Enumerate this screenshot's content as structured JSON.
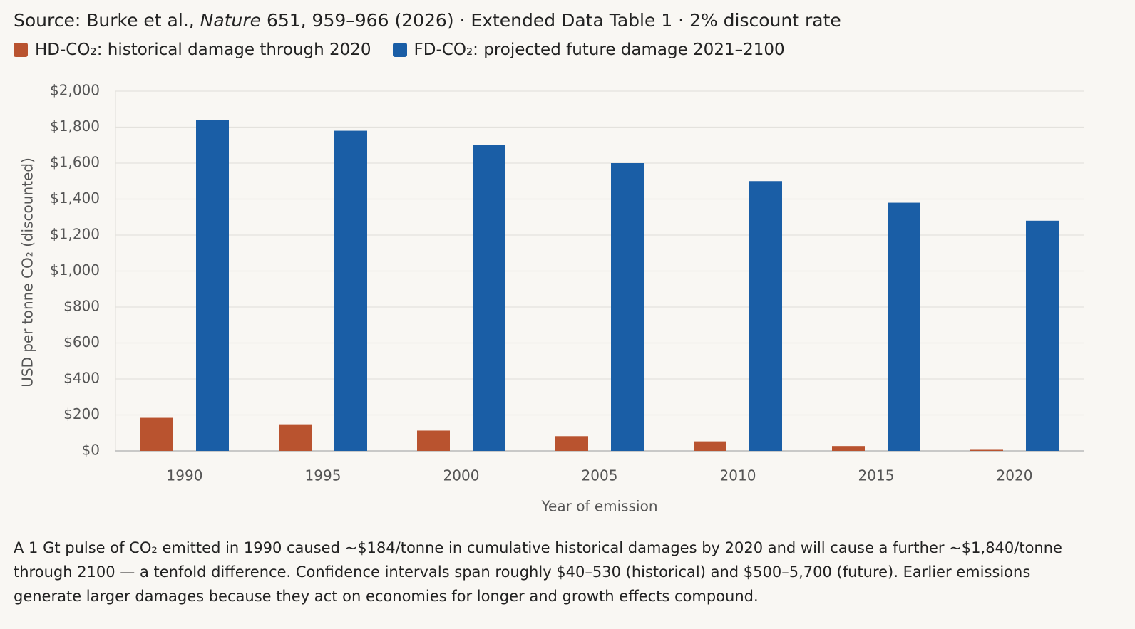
{
  "chart_data": {
    "type": "bar",
    "title_parts": [
      "Source: Burke et al., ",
      "Nature",
      " 651, 959–966 (2026) · Extended Data Table 1 · 2% discount rate"
    ],
    "categories": [
      "1990",
      "1995",
      "2000",
      "2005",
      "2010",
      "2015",
      "2020"
    ],
    "series": [
      {
        "name": "HD-CO₂: historical damage through 2020",
        "color": "#b9532f",
        "values": [
          184,
          148,
          113,
          82,
          53,
          27,
          6
        ]
      },
      {
        "name": "FD-CO₂: projected future damage 2021–2100",
        "color": "#1a5ea6",
        "values": [
          1840,
          1780,
          1700,
          1600,
          1500,
          1380,
          1280
        ]
      }
    ],
    "ylim": [
      0,
      2000
    ],
    "yticks": [
      {
        "value": 0,
        "label": "$0"
      },
      {
        "value": 200,
        "label": "$200"
      },
      {
        "value": 400,
        "label": "$400"
      },
      {
        "value": 600,
        "label": "$600"
      },
      {
        "value": 800,
        "label": "$800"
      },
      {
        "value": 1000,
        "label": "$1,000"
      },
      {
        "value": 1200,
        "label": "$1,200"
      },
      {
        "value": 1400,
        "label": "$1,400"
      },
      {
        "value": 1600,
        "label": "$1,600"
      },
      {
        "value": 1800,
        "label": "$1,800"
      },
      {
        "value": 2000,
        "label": "$2,000"
      }
    ],
    "grid": true,
    "xlabel": "Year of emission",
    "ylabel": "USD per tonne CO₂ (discounted)",
    "note": "A 1 Gt pulse of CO₂ emitted in 1990 caused ~$184/tonne in cumulative historical damages by 2020 and will cause a further ~$1,840/tonne through 2100 — a tenfold difference. Confidence intervals span roughly $40–530 (historical) and $500–5,700 (future). Earlier emissions generate larger damages because they act on economies for longer and growth effects compound."
  }
}
